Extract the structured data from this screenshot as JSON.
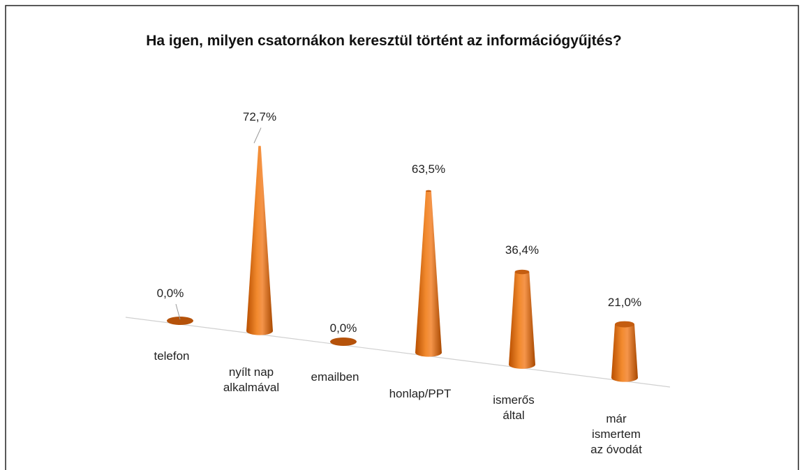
{
  "chart_data": {
    "type": "cone",
    "title": "Ha igen, milyen csatornákon keresztül történt az információgyűjtés?",
    "categories": [
      "telefon",
      "nyílt nap alkalmával",
      "emailben",
      "honlap/PPT",
      "ismerős által",
      "már ismertem az óvodát"
    ],
    "values": [
      0,
      72.7,
      0,
      63.5,
      36.4,
      21.0
    ],
    "value_labels": [
      "0,0%",
      "72,7%",
      "0,0%",
      "63,5%",
      "36,4%",
      "21,0%"
    ],
    "color": "#e46c0a"
  }
}
